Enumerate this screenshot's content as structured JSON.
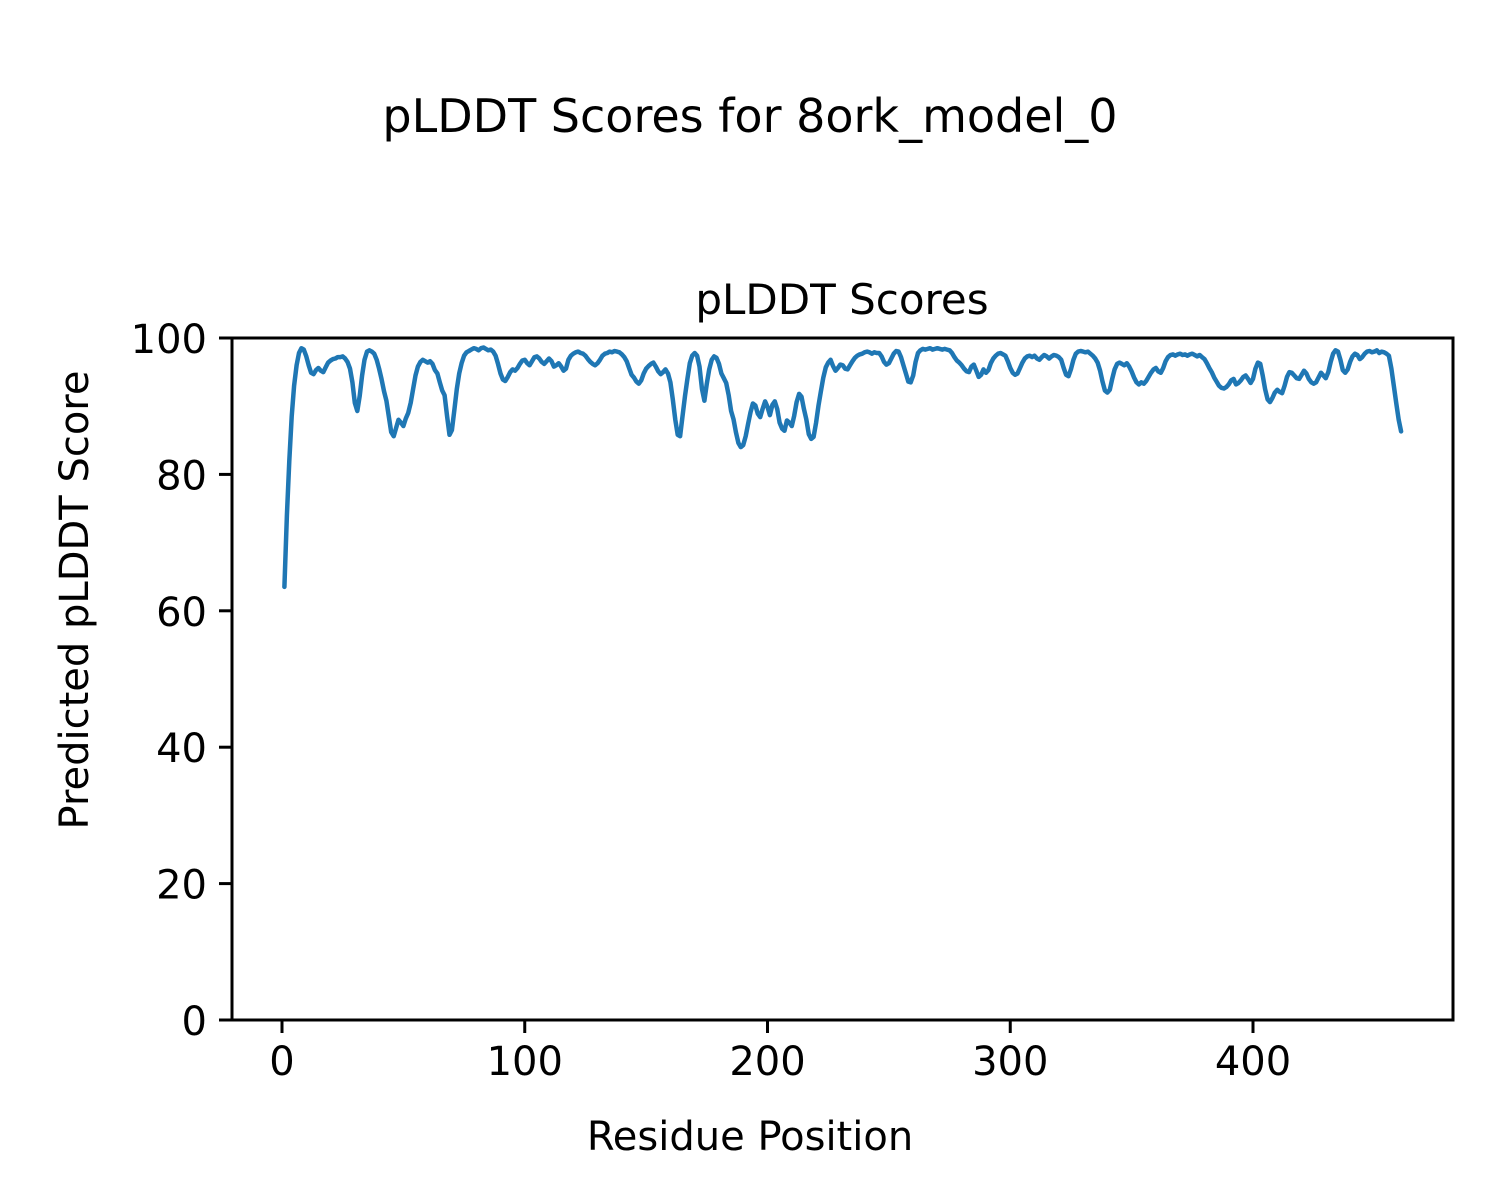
{
  "figure": {
    "suptitle": "pLDDT Scores for 8ork_model_0",
    "axes_title": "pLDDT Scores",
    "xlabel": "Residue Position",
    "ylabel": "Predicted pLDDT Score"
  },
  "colors": {
    "line": "#1f77b4",
    "text": "#000000",
    "background": "#ffffff",
    "spine": "#000000"
  },
  "chart_data": {
    "type": "line",
    "suptitle": "pLDDT Scores for 8ork_model_0",
    "title": "pLDDT Scores",
    "xlabel": "Residue Position",
    "ylabel": "Predicted pLDDT Score",
    "x_ticks": [
      0,
      100,
      200,
      300,
      400
    ],
    "y_ticks": [
      0,
      20,
      40,
      60,
      80,
      100
    ],
    "xlim": [
      -21,
      483
    ],
    "ylim": [
      0,
      100
    ],
    "grid": false,
    "legend": "none",
    "x_start": 1,
    "x_step": 1,
    "series": [
      {
        "name": "pLDDT",
        "color": "#1f77b4",
        "values": [
          63.5,
          74.0,
          82.0,
          88.5,
          93.0,
          96.0,
          97.8,
          98.5,
          98.3,
          97.3,
          96.0,
          94.9,
          94.7,
          95.3,
          95.6,
          95.2,
          95.0,
          95.7,
          96.4,
          96.7,
          96.9,
          97.0,
          97.2,
          97.2,
          97.3,
          97.0,
          96.5,
          95.5,
          93.5,
          90.5,
          89.3,
          91.5,
          94.5,
          96.8,
          98.0,
          98.2,
          98.0,
          97.7,
          96.8,
          95.5,
          94.0,
          92.2,
          90.8,
          88.5,
          86.2,
          85.6,
          86.8,
          88.0,
          87.6,
          87.1,
          88.2,
          89.0,
          90.5,
          92.5,
          94.5,
          95.8,
          96.5,
          96.8,
          96.6,
          96.4,
          96.6,
          96.2,
          95.3,
          94.8,
          93.5,
          92.3,
          91.6,
          88.5,
          85.8,
          86.5,
          89.5,
          92.5,
          94.8,
          96.3,
          97.4,
          97.9,
          98.1,
          98.3,
          98.5,
          98.4,
          98.2,
          98.5,
          98.6,
          98.4,
          98.2,
          98.3,
          98.0,
          97.4,
          96.2,
          94.8,
          93.9,
          93.7,
          94.3,
          95.0,
          95.4,
          95.2,
          95.6,
          96.2,
          96.7,
          96.8,
          96.3,
          96.0,
          96.6,
          97.2,
          97.3,
          97.0,
          96.5,
          96.2,
          96.6,
          97.0,
          96.6,
          95.8,
          96.0,
          96.3,
          95.8,
          95.2,
          95.5,
          96.8,
          97.4,
          97.7,
          97.9,
          98.0,
          97.8,
          97.7,
          97.4,
          96.9,
          96.5,
          96.2,
          96.0,
          96.3,
          96.8,
          97.4,
          97.7,
          97.8,
          98.0,
          97.9,
          98.1,
          98.0,
          97.9,
          97.6,
          97.2,
          96.6,
          95.6,
          94.6,
          94.2,
          93.6,
          93.3,
          93.8,
          94.8,
          95.5,
          95.9,
          96.2,
          96.4,
          95.8,
          95.1,
          94.7,
          95.0,
          95.4,
          94.8,
          93.5,
          91.0,
          88.0,
          85.8,
          85.6,
          88.5,
          91.5,
          94.0,
          96.3,
          97.4,
          97.8,
          97.4,
          95.8,
          92.5,
          90.8,
          93.3,
          95.4,
          96.8,
          97.3,
          97.1,
          96.2,
          94.8,
          94.1,
          93.4,
          91.6,
          89.3,
          88.1,
          86.2,
          84.6,
          84.0,
          84.3,
          85.6,
          87.4,
          89.1,
          90.4,
          90.1,
          88.9,
          88.4,
          89.6,
          90.7,
          89.9,
          88.7,
          90.2,
          90.7,
          89.6,
          87.6,
          86.7,
          86.4,
          87.9,
          87.6,
          87.1,
          88.6,
          90.6,
          91.8,
          91.4,
          89.6,
          88.1,
          85.9,
          85.2,
          85.5,
          87.6,
          90.1,
          92.2,
          94.2,
          95.7,
          96.4,
          96.8,
          95.9,
          95.2,
          95.6,
          96.1,
          96.0,
          95.5,
          95.4,
          96.0,
          96.6,
          97.1,
          97.4,
          97.6,
          97.7,
          97.9,
          98.0,
          97.9,
          97.7,
          97.9,
          97.8,
          97.8,
          97.3,
          96.5,
          96.1,
          96.3,
          97.0,
          97.7,
          98.1,
          98.0,
          97.2,
          96.0,
          94.8,
          93.6,
          93.5,
          94.5,
          96.5,
          97.8,
          98.2,
          98.4,
          98.3,
          98.4,
          98.5,
          98.3,
          98.4,
          98.5,
          98.4,
          98.3,
          98.4,
          98.3,
          98.2,
          97.8,
          97.2,
          96.7,
          96.4,
          96.0,
          95.5,
          95.1,
          95.0,
          95.8,
          96.1,
          95.2,
          94.3,
          94.6,
          95.4,
          94.9,
          95.3,
          96.3,
          97.0,
          97.4,
          97.7,
          97.8,
          97.6,
          97.4,
          96.6,
          95.6,
          94.9,
          94.6,
          94.8,
          95.6,
          96.4,
          97.0,
          97.3,
          97.4,
          97.2,
          97.4,
          97.0,
          96.8,
          97.2,
          97.5,
          97.3,
          97.0,
          97.3,
          97.5,
          97.4,
          97.2,
          96.8,
          95.6,
          94.6,
          94.4,
          95.4,
          96.8,
          97.7,
          98.0,
          98.1,
          98.0,
          97.9,
          98.0,
          97.7,
          97.4,
          97.0,
          96.4,
          95.2,
          93.6,
          92.3,
          92.0,
          92.4,
          94.0,
          95.4,
          96.2,
          96.4,
          96.2,
          96.0,
          96.3,
          95.8,
          95.1,
          94.2,
          93.5,
          93.2,
          93.5,
          93.3,
          93.7,
          94.3,
          94.9,
          95.4,
          95.6,
          95.1,
          94.9,
          95.6,
          96.6,
          97.2,
          97.5,
          97.6,
          97.4,
          97.6,
          97.7,
          97.5,
          97.6,
          97.4,
          97.6,
          97.7,
          97.5,
          97.3,
          97.5,
          97.2,
          96.9,
          96.3,
          95.6,
          95.0,
          94.2,
          93.6,
          93.0,
          92.7,
          92.6,
          92.8,
          93.2,
          93.8,
          94.0,
          93.2,
          93.4,
          93.8,
          94.3,
          94.5,
          94.0,
          93.4,
          94.0,
          95.5,
          96.4,
          96.2,
          94.5,
          92.5,
          91.0,
          90.6,
          91.2,
          92.0,
          92.4,
          92.1,
          91.9,
          93.0,
          94.3,
          95.0,
          94.9,
          94.5,
          94.1,
          94.0,
          94.6,
          95.2,
          94.8,
          94.0,
          93.5,
          93.3,
          93.5,
          94.2,
          94.9,
          94.5,
          94.1,
          95.0,
          96.5,
          97.7,
          98.2,
          98.0,
          96.8,
          95.3,
          94.9,
          95.4,
          96.5,
          97.3,
          97.7,
          97.5,
          96.9,
          97.2,
          97.7,
          98.0,
          98.1,
          97.9,
          98.0,
          98.2,
          97.8,
          98.0,
          97.9,
          97.7,
          97.4,
          95.5,
          93.0,
          90.5,
          88.0,
          86.3
        ]
      }
    ]
  }
}
